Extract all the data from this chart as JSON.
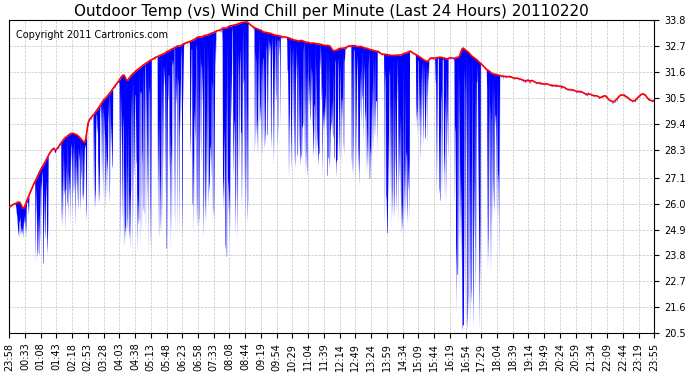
{
  "title": "Outdoor Temp (vs) Wind Chill per Minute (Last 24 Hours) 20110220",
  "copyright_text": "Copyright 2011 Cartronics.com",
  "y_min": 20.5,
  "y_max": 33.8,
  "y_ticks": [
    20.5,
    21.6,
    22.7,
    23.8,
    24.9,
    26.0,
    27.1,
    28.3,
    29.4,
    30.5,
    31.6,
    32.7,
    33.8
  ],
  "x_labels": [
    "23:58",
    "00:33",
    "01:08",
    "01:43",
    "02:18",
    "02:53",
    "03:28",
    "04:03",
    "04:38",
    "05:13",
    "05:48",
    "06:23",
    "06:58",
    "07:33",
    "08:08",
    "08:44",
    "09:19",
    "09:54",
    "10:29",
    "11:04",
    "11:39",
    "12:14",
    "12:49",
    "13:24",
    "13:59",
    "14:34",
    "15:09",
    "15:44",
    "16:19",
    "16:54",
    "17:29",
    "18:04",
    "18:39",
    "19:14",
    "19:49",
    "20:24",
    "20:59",
    "21:34",
    "22:09",
    "22:44",
    "23:19",
    "23:55"
  ],
  "outdoor_color": "#ff0000",
  "windchill_color": "#0000ff",
  "background_color": "#ffffff",
  "grid_color": "#aaaaaa",
  "title_fontsize": 11,
  "copyright_fontsize": 7,
  "tick_fontsize": 7
}
